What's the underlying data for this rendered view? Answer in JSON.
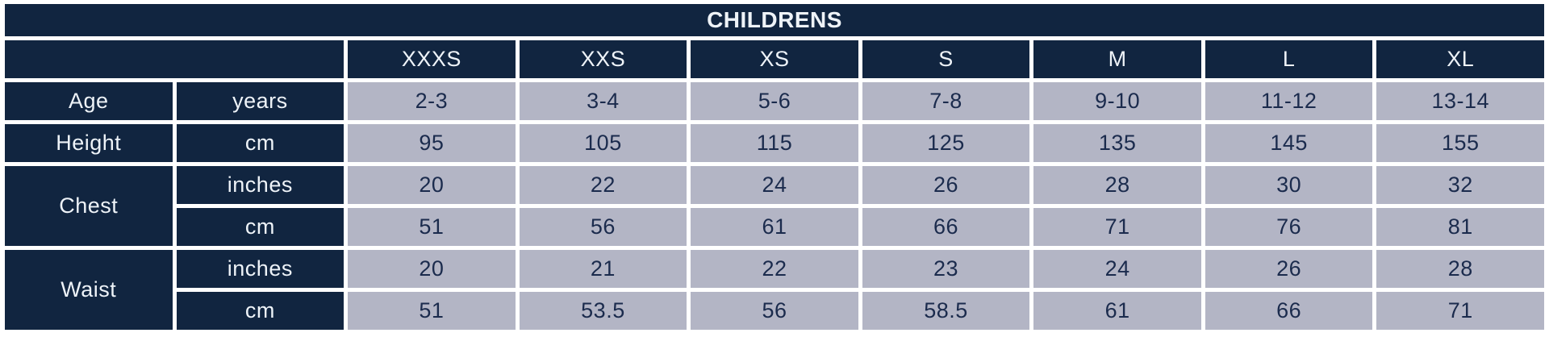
{
  "chart_data": {
    "type": "table",
    "title": "CHILDRENS",
    "columns": [
      "",
      "",
      "XXXS",
      "XXS",
      "XS",
      "S",
      "M",
      "L",
      "XL"
    ],
    "rows": [
      [
        "Age",
        "years",
        "2-3",
        "3-4",
        "5-6",
        "7-8",
        "9-10",
        "11-12",
        "13-14"
      ],
      [
        "Height",
        "cm",
        "95",
        "105",
        "115",
        "125",
        "135",
        "145",
        "155"
      ],
      [
        "Chest",
        "inches",
        "20",
        "22",
        "24",
        "26",
        "28",
        "30",
        "32"
      ],
      [
        "Chest",
        "cm",
        "51",
        "56",
        "61",
        "66",
        "71",
        "76",
        "81"
      ],
      [
        "Waist",
        "inches",
        "20",
        "21",
        "22",
        "23",
        "24",
        "26",
        "28"
      ],
      [
        "Waist",
        "cm",
        "51",
        "53.5",
        "56",
        "58.5",
        "61",
        "66",
        "71"
      ]
    ],
    "layout": "header row of size codes; first column measurement labels; second column units; grid with white gutters"
  },
  "table": {
    "title": "CHILDRENS",
    "sizes": [
      "XXXS",
      "XXS",
      "XS",
      "S",
      "M",
      "L",
      "XL"
    ],
    "measurements": [
      {
        "label": "Age",
        "rows": [
          {
            "unit": "years",
            "values": [
              "2-3",
              "3-4",
              "5-6",
              "7-8",
              "9-10",
              "11-12",
              "13-14"
            ]
          }
        ]
      },
      {
        "label": "Height",
        "rows": [
          {
            "unit": "cm",
            "values": [
              "95",
              "105",
              "115",
              "125",
              "135",
              "145",
              "155"
            ]
          }
        ]
      },
      {
        "label": "Chest",
        "rows": [
          {
            "unit": "inches",
            "values": [
              "20",
              "22",
              "24",
              "26",
              "28",
              "30",
              "32"
            ]
          },
          {
            "unit": "cm",
            "values": [
              "51",
              "56",
              "61",
              "66",
              "71",
              "76",
              "81"
            ]
          }
        ]
      },
      {
        "label": "Waist",
        "rows": [
          {
            "unit": "inches",
            "values": [
              "20",
              "21",
              "22",
              "23",
              "24",
              "26",
              "28"
            ]
          },
          {
            "unit": "cm",
            "values": [
              "51",
              "53.5",
              "56",
              "58.5",
              "61",
              "66",
              "71"
            ]
          }
        ]
      }
    ]
  },
  "colors": {
    "header_navy": "#112540",
    "cell_gray": "#b3b5c5",
    "gutter_white": "#ffffff",
    "cell_text_navy": "#1b2b4d",
    "header_text": "#eef3f8"
  }
}
